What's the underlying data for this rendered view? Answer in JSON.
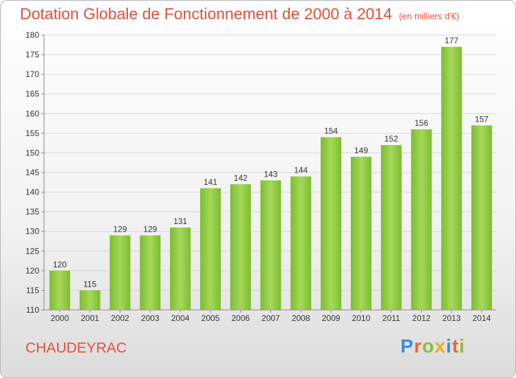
{
  "header": {
    "title": "Dotation Globale de Fonctionnement de 2000 à 2014",
    "unit": "(en milliers d'€)"
  },
  "footer": {
    "commune": "CHAUDEYRAC",
    "logo_letters": [
      {
        "ch": "P",
        "color": "#3b8fd4"
      },
      {
        "ch": "r",
        "color": "#e56a2c"
      },
      {
        "ch": "o",
        "color": "#8cbc3a"
      },
      {
        "ch": "x",
        "color": "#e2b11f"
      },
      {
        "ch": "i",
        "color": "#3b8fd4"
      },
      {
        "ch": "t",
        "color": "#e56a2c"
      },
      {
        "ch": "i",
        "color": "#8cbc3a"
      }
    ]
  },
  "chart_data": {
    "type": "bar",
    "categories": [
      "2000",
      "2001",
      "2002",
      "2003",
      "2004",
      "2005",
      "2006",
      "2007",
      "2008",
      "2009",
      "2010",
      "2011",
      "2012",
      "2013",
      "2014"
    ],
    "values": [
      120,
      115,
      129,
      129,
      131,
      141,
      142,
      143,
      144,
      154,
      149,
      152,
      156,
      177,
      157
    ],
    "ylim": [
      110,
      180
    ],
    "yticks": [
      110,
      115,
      120,
      125,
      130,
      135,
      140,
      145,
      150,
      155,
      160,
      165,
      170,
      175,
      180
    ],
    "grid": true,
    "bar_color": "#7cbd2f",
    "bar_color_light": "#a5d85a"
  }
}
